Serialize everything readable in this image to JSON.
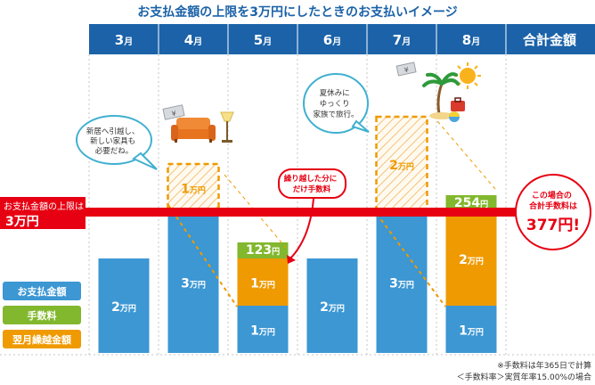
{
  "title": "お支払金額の上限を3万円にしたときのお支払いイメージ",
  "total_header": "合計金額",
  "months": [
    "3月",
    "4月",
    "5月",
    "6月",
    "7月",
    "8月"
  ],
  "limit_label": {
    "line1": "お支払金額の上限は",
    "line2": "3万円"
  },
  "legend": [
    {
      "label": "お支払金額",
      "color": "#3c97d3"
    },
    {
      "label": "手数料",
      "color": "#82b82d"
    },
    {
      "label": "翌月繰越金額",
      "color": "#ef9a00"
    }
  ],
  "callouts": {
    "moving": "新居へ引越し、新しい家具も必要だね。",
    "vacation": "夏休みにゆっくり家族で旅行。",
    "carryover_fee": "繰り越した分にだけ手数料",
    "total": "この場合の合計手数料は",
    "total_value": "377円!"
  },
  "icons": [
    "sofa-icon",
    "lamp-icon",
    "money-icon",
    "sun-icon",
    "palm-tree-icon",
    "suitcase-icon",
    "beach-ball-icon"
  ],
  "footnotes": [
    "※手数料は年365日で計算",
    "＜手数料率＞実質年率15.00%の場合"
  ],
  "colors": {
    "header_blue": "#1b62a8",
    "payment": "#3c97d3",
    "fee": "#82b82d",
    "carryover": "#ef9a00",
    "limit_line": "#e60012"
  },
  "chart_data": {
    "type": "bar",
    "stacked": true,
    "title": "お支払金額の上限を3万円にしたときのお支払いイメージ",
    "categories": [
      "3月",
      "4月",
      "5月",
      "6月",
      "7月",
      "8月"
    ],
    "unit": "万円",
    "limit": 3,
    "series": [
      {
        "name": "お支払金額",
        "values": [
          2,
          3,
          1,
          2,
          3,
          1
        ],
        "labels": [
          "2万円",
          "3万円",
          "1万円",
          "2万円",
          "3万円",
          "1万円"
        ]
      },
      {
        "name": "翌月繰越金額",
        "values": [
          0,
          1,
          1,
          0,
          2,
          2
        ],
        "labels": [
          "",
          "1万円",
          "1万円",
          "",
          "2万円",
          "2万円"
        ],
        "carried_next_month": [
          false,
          true,
          false,
          false,
          true,
          false
        ]
      },
      {
        "name": "手数料",
        "values": [
          0,
          0,
          123,
          0,
          0,
          254
        ],
        "unit": "円",
        "labels": [
          "",
          "",
          "123円",
          "",
          "",
          "254円"
        ]
      }
    ],
    "total_fee": "377円!"
  }
}
